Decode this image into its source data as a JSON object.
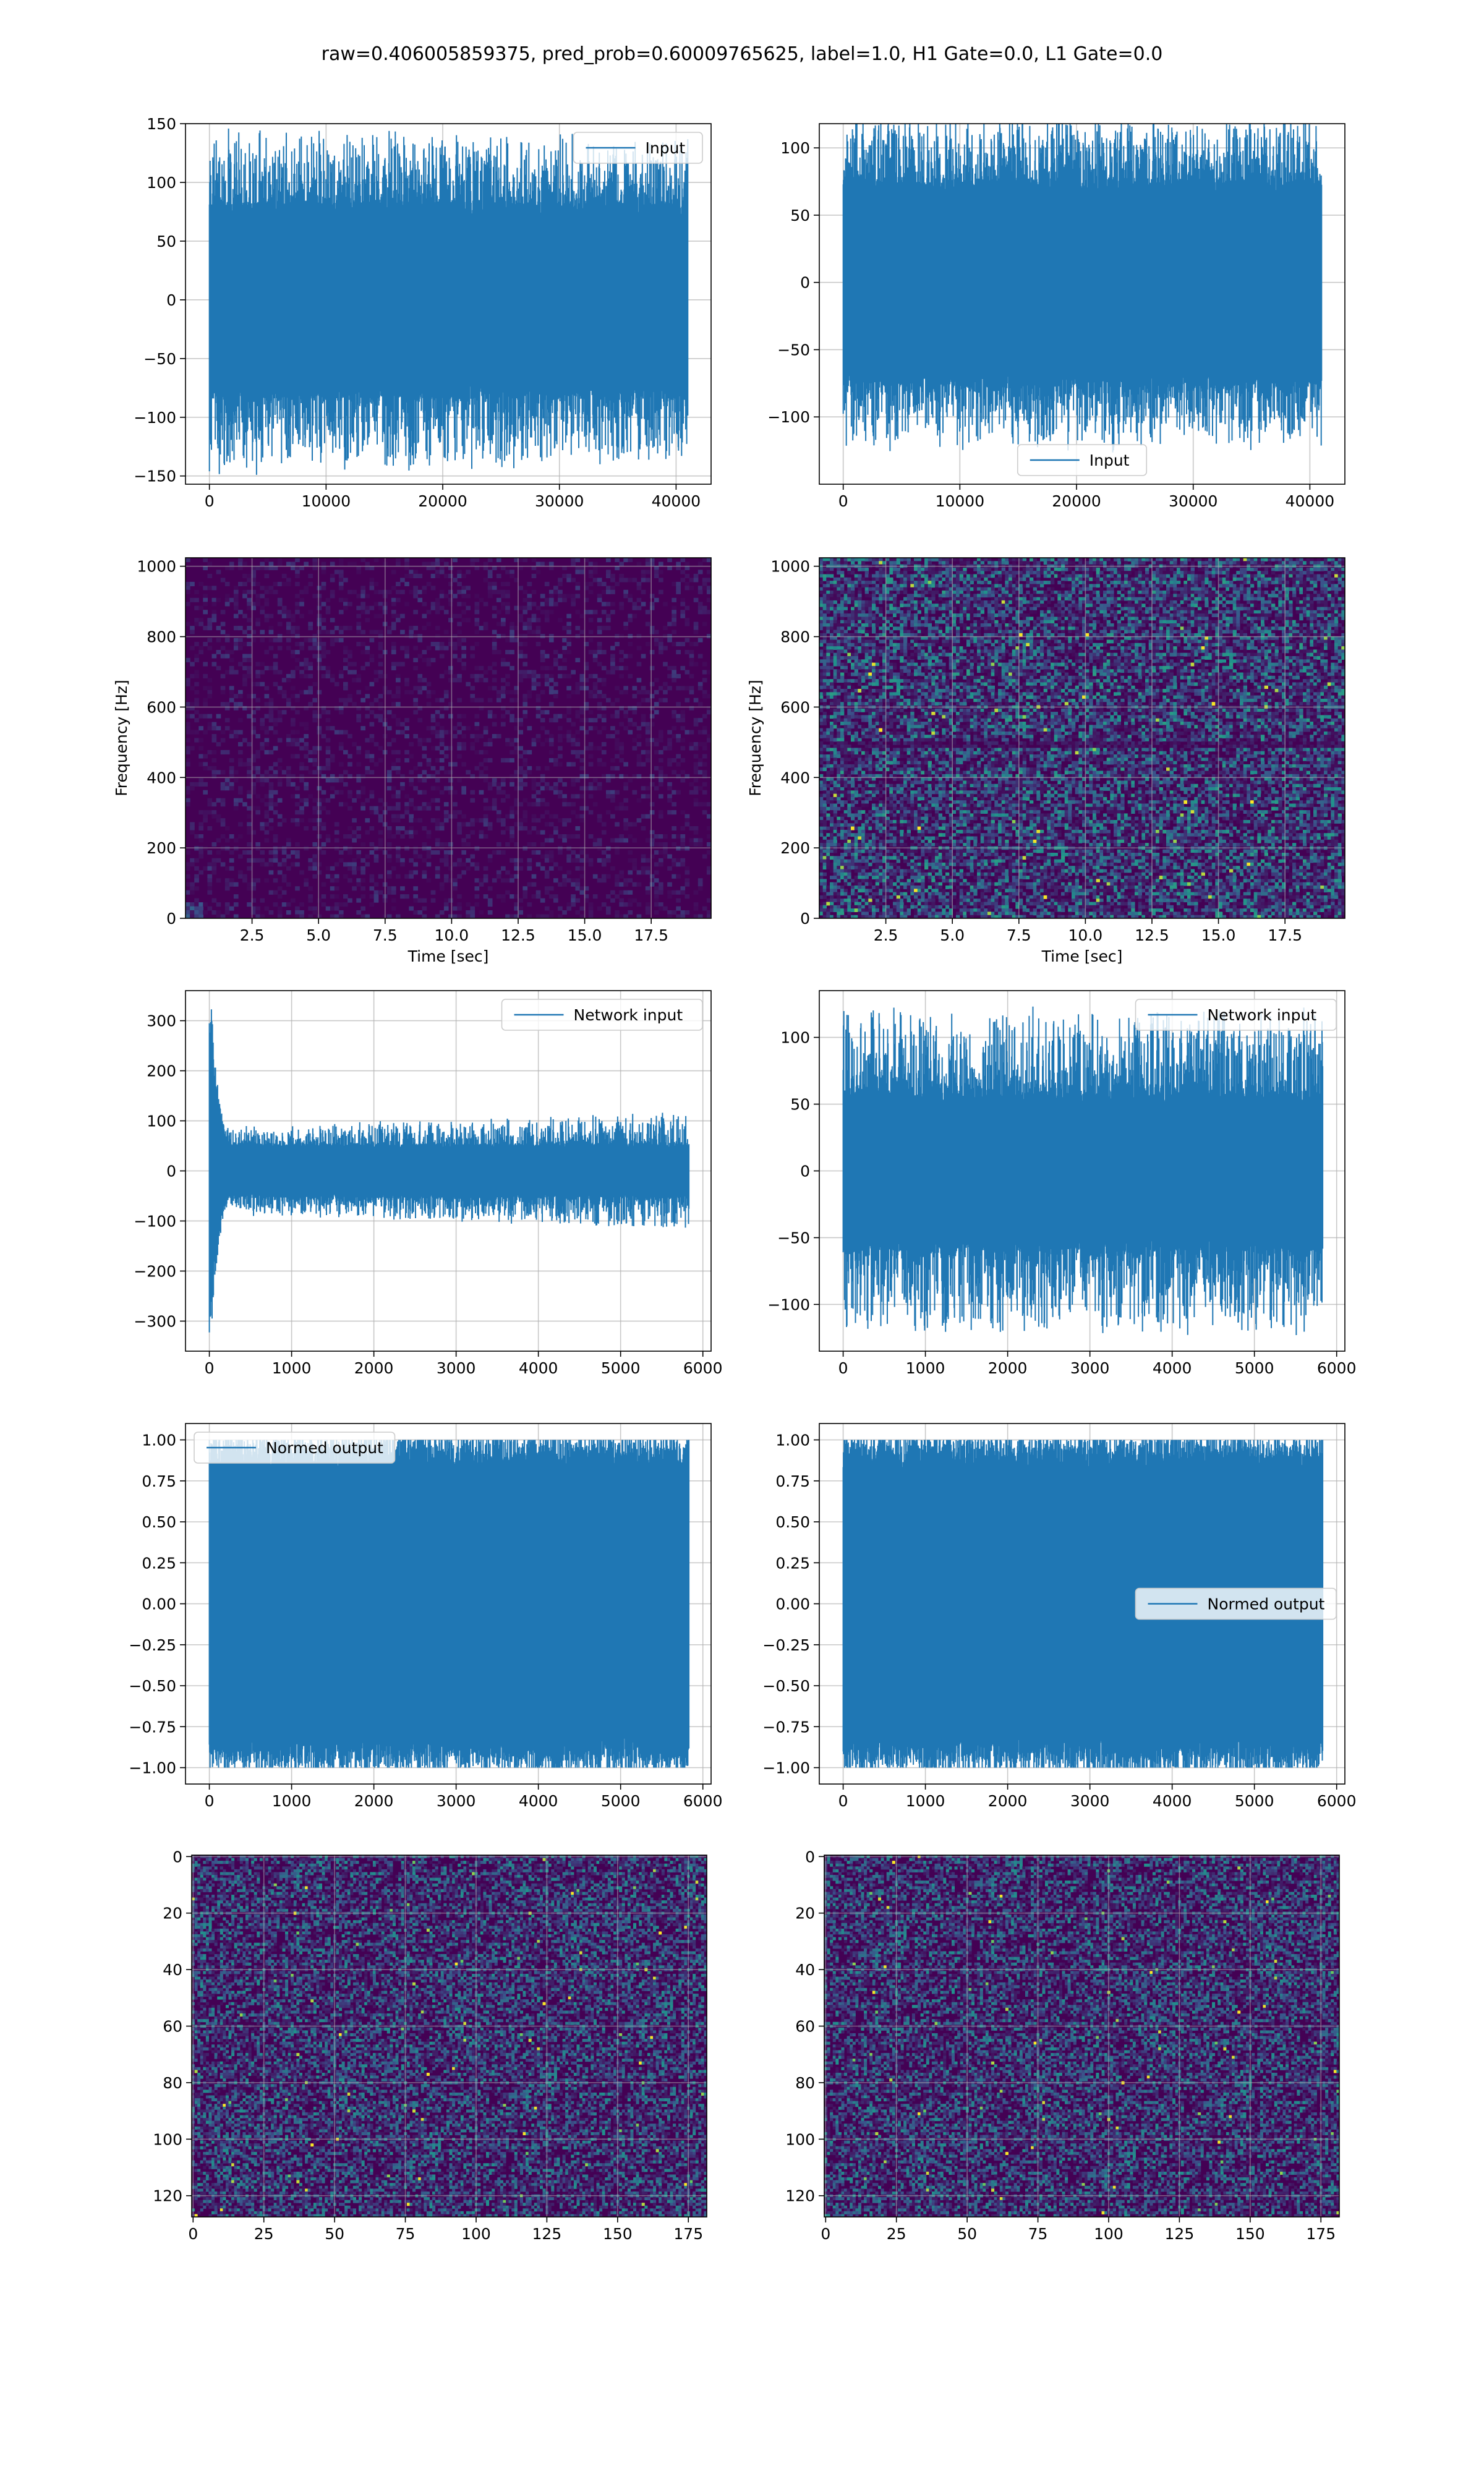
{
  "suptitle": "raw=0.406005859375, pred_prob=0.60009765625, label=1.0, H1 Gate=0.0, L1 Gate=0.0",
  "colors": {
    "line": "#1f77b4",
    "grid": "#b0b0b0",
    "viridis_low": "#440154",
    "viridis_mid": "#21918c",
    "viridis_high": "#fde725"
  },
  "chart_data": [
    {
      "id": "input-left",
      "type": "line",
      "legend": "Input",
      "legend_loc": "upper right",
      "xlim": [
        -2050,
        43000
      ],
      "ylim": [
        -157,
        150
      ],
      "xticks": [
        0,
        10000,
        20000,
        30000,
        40000
      ],
      "yticks": [
        -150,
        -100,
        -50,
        0,
        50,
        100,
        150
      ],
      "xlabel": "",
      "ylabel": "",
      "signal": {
        "x_start": 0,
        "x_end": 41000,
        "envelope": [
          [
            0,
            138
          ],
          [
            41000,
            128
          ]
        ],
        "core_amplitude": 70
      }
    },
    {
      "id": "input-right",
      "type": "line",
      "legend": "Input",
      "legend_loc": "lower center",
      "xlim": [
        -2050,
        43000
      ],
      "ylim": [
        -150,
        118
      ],
      "xticks": [
        0,
        10000,
        20000,
        30000,
        40000
      ],
      "yticks": [
        -100,
        -50,
        0,
        50,
        100
      ],
      "xlabel": "",
      "ylabel": "",
      "signal": {
        "x_start": 0,
        "x_end": 41000,
        "envelope": [
          [
            0,
            115
          ],
          [
            41000,
            115
          ]
        ],
        "core_amplitude": 65
      }
    },
    {
      "id": "spectrogram-left",
      "type": "heatmap",
      "xlim": [
        0,
        19.75
      ],
      "ylim": [
        0,
        1024
      ],
      "xticks": [
        2.5,
        5.0,
        7.5,
        10.0,
        12.5,
        15.0,
        17.5
      ],
      "yticks": [
        0,
        200,
        400,
        600,
        800,
        1000
      ],
      "xlabel": "Time [sec]",
      "ylabel": "Frequency [Hz]",
      "intensity": "low",
      "colormap": "viridis"
    },
    {
      "id": "spectrogram-right",
      "type": "heatmap",
      "xlim": [
        0,
        19.75
      ],
      "ylim": [
        0,
        1024
      ],
      "xticks": [
        2.5,
        5.0,
        7.5,
        10.0,
        12.5,
        15.0,
        17.5
      ],
      "yticks": [
        0,
        200,
        400,
        600,
        800,
        1000
      ],
      "xlabel": "Time [sec]",
      "ylabel": "Frequency [Hz]",
      "intensity": "medium",
      "colormap": "viridis"
    },
    {
      "id": "network-input-left",
      "type": "line",
      "legend": "Network input",
      "legend_loc": "upper right",
      "xlim": [
        -290,
        6100
      ],
      "ylim": [
        -360,
        360
      ],
      "xticks": [
        0,
        1000,
        2000,
        3000,
        4000,
        5000,
        6000
      ],
      "yticks": [
        -300,
        -200,
        -100,
        0,
        100,
        200,
        300
      ],
      "xlabel": "",
      "ylabel": "",
      "signal": {
        "x_start": 0,
        "x_end": 5830,
        "transient": {
          "x": 20,
          "peak": 340,
          "min": -330,
          "decay": 120
        },
        "envelope": [
          [
            0,
            80
          ],
          [
            5830,
            110
          ]
        ],
        "core_amplitude": 45
      }
    },
    {
      "id": "network-input-right",
      "type": "line",
      "legend": "Network input",
      "legend_loc": "upper right",
      "xlim": [
        -290,
        6100
      ],
      "ylim": [
        -135,
        135
      ],
      "xticks": [
        0,
        1000,
        2000,
        3000,
        4000,
        5000,
        6000
      ],
      "yticks": [
        -100,
        -50,
        0,
        50,
        100
      ],
      "xlabel": "",
      "ylabel": "",
      "signal": {
        "x_start": 0,
        "x_end": 5830,
        "envelope": [
          [
            0,
            115
          ],
          [
            5830,
            115
          ]
        ],
        "core_amplitude": 50
      }
    },
    {
      "id": "normed-output-left",
      "type": "line",
      "legend": "Normed output",
      "legend_loc": "upper left",
      "xlim": [
        -290,
        6100
      ],
      "ylim": [
        -1.1,
        1.1
      ],
      "xticks": [
        0,
        1000,
        2000,
        3000,
        4000,
        5000,
        6000
      ],
      "yticks": [
        -1.0,
        -0.75,
        -0.5,
        -0.25,
        0.0,
        0.25,
        0.5,
        0.75,
        1.0
      ],
      "xlabel": "",
      "ylabel": "",
      "signal": {
        "x_start": 0,
        "x_end": 5830,
        "envelope": [
          [
            0,
            1.0
          ],
          [
            5830,
            1.0
          ]
        ],
        "core_amplitude": 0.8
      }
    },
    {
      "id": "normed-output-right",
      "type": "line",
      "legend": "Normed output",
      "legend_loc": "center right",
      "xlim": [
        -290,
        6100
      ],
      "ylim": [
        -1.1,
        1.1
      ],
      "xticks": [
        0,
        1000,
        2000,
        3000,
        4000,
        5000,
        6000
      ],
      "yticks": [
        -1.0,
        -0.75,
        -0.5,
        -0.25,
        0.0,
        0.25,
        0.5,
        0.75,
        1.0
      ],
      "xlabel": "",
      "ylabel": "",
      "signal": {
        "x_start": 0,
        "x_end": 5830,
        "envelope": [
          [
            0,
            1.0
          ],
          [
            5830,
            1.0
          ]
        ],
        "core_amplitude": 0.8
      }
    },
    {
      "id": "image-left",
      "type": "heatmap",
      "xlim": [
        -0.5,
        181.5
      ],
      "ylim": [
        127.5,
        -0.5
      ],
      "xticks": [
        0,
        25,
        50,
        75,
        100,
        125,
        150,
        175
      ],
      "yticks": [
        0,
        20,
        40,
        60,
        80,
        100,
        120
      ],
      "xlabel": "",
      "ylabel": "",
      "rows": 128,
      "cols": 182,
      "intensity": "medium",
      "colormap": "viridis"
    },
    {
      "id": "image-right",
      "type": "heatmap",
      "xlim": [
        -0.5,
        181.5
      ],
      "ylim": [
        127.5,
        -0.5
      ],
      "xticks": [
        0,
        25,
        50,
        75,
        100,
        125,
        150,
        175
      ],
      "yticks": [
        0,
        20,
        40,
        60,
        80,
        100,
        120
      ],
      "xlabel": "",
      "ylabel": "",
      "rows": 128,
      "cols": 182,
      "intensity": "medium",
      "colormap": "viridis"
    }
  ]
}
